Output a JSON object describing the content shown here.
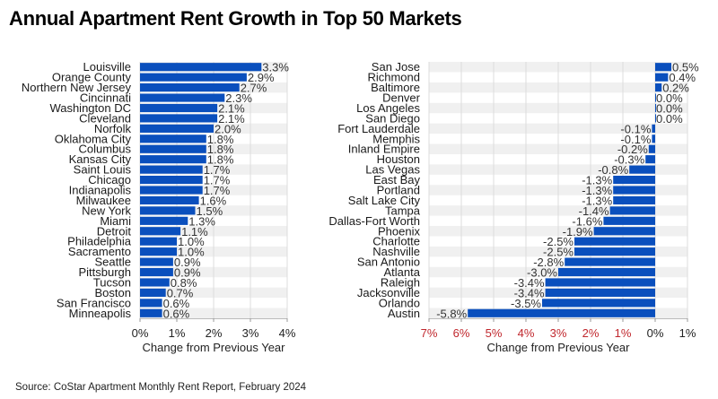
{
  "title": "Annual Apartment Rent Growth in Top 50 Markets",
  "source": "Source: CoStar Apartment Monthly Rent Report, February 2024",
  "colors": {
    "bar": "#0a4fbd",
    "stripe": "#f0f0f0",
    "grid": "#dddddd",
    "negative_tick": "#c0272d"
  },
  "chart_data": [
    {
      "type": "bar",
      "orientation": "horizontal",
      "categories": [
        "Louisville",
        "Orange County",
        "Northern New Jersey",
        "Cincinnati",
        "Washington DC",
        "Cleveland",
        "Norfolk",
        "Oklahoma City",
        "Columbus",
        "Kansas City",
        "Saint Louis",
        "Chicago",
        "Indianapolis",
        "Milwaukee",
        "New York",
        "Miami",
        "Detroit",
        "Philadelphia",
        "Sacramento",
        "Seattle",
        "Pittsburgh",
        "Tucson",
        "Boston",
        "San Francisco",
        "Minneapolis"
      ],
      "values": [
        3.3,
        2.9,
        2.7,
        2.3,
        2.1,
        2.1,
        2.0,
        1.8,
        1.8,
        1.8,
        1.7,
        1.7,
        1.7,
        1.6,
        1.5,
        1.3,
        1.1,
        1.0,
        1.0,
        0.9,
        0.9,
        0.8,
        0.7,
        0.6,
        0.6
      ],
      "value_labels": [
        "3.3%",
        "2.9%",
        "2.7%",
        "2.3%",
        "2.1%",
        "2.1%",
        "2.0%",
        "1.8%",
        "1.8%",
        "1.8%",
        "1.7%",
        "1.7%",
        "1.7%",
        "1.6%",
        "1.5%",
        "1.3%",
        "1.1%",
        "1.0%",
        "1.0%",
        "0.9%",
        "0.9%",
        "0.8%",
        "0.7%",
        "0.6%",
        "0.6%"
      ],
      "xlabel": "Change from Previous Year",
      "xlim": [
        0,
        4
      ],
      "xticks": [
        0,
        1,
        2,
        3,
        4
      ],
      "xtick_labels": [
        "0%",
        "1%",
        "2%",
        "3%",
        "4%"
      ],
      "grid": true
    },
    {
      "type": "bar",
      "orientation": "horizontal",
      "categories": [
        "San Jose",
        "Richmond",
        "Baltimore",
        "Denver",
        "Los Angeles",
        "San Diego",
        "Fort Lauderdale",
        "Memphis",
        "Inland Empire",
        "Houston",
        "Las Vegas",
        "East Bay",
        "Portland",
        "Salt Lake City",
        "Tampa",
        "Dallas-Fort Worth",
        "Phoenix",
        "Charlotte",
        "Nashville",
        "San Antonio",
        "Atlanta",
        "Raleigh",
        "Jacksonville",
        "Orlando",
        "Austin"
      ],
      "values": [
        0.5,
        0.4,
        0.2,
        0.0,
        0.0,
        0.0,
        -0.1,
        -0.1,
        -0.2,
        -0.3,
        -0.8,
        -1.3,
        -1.3,
        -1.3,
        -1.4,
        -1.6,
        -1.9,
        -2.5,
        -2.5,
        -2.8,
        -3.0,
        -3.4,
        -3.4,
        -3.5,
        -5.8
      ],
      "value_labels": [
        "0.5%",
        "0.4%",
        "0.2%",
        "0.0%",
        "0.0%",
        "0.0%",
        "-0.1%",
        "-0.1%",
        "-0.2%",
        "-0.3%",
        "-0.8%",
        "-1.3%",
        "-1.3%",
        "-1.3%",
        "-1.4%",
        "-1.6%",
        "-1.9%",
        "-2.5%",
        "-2.5%",
        "-2.8%",
        "-3.0%",
        "-3.4%",
        "-3.4%",
        "-3.5%",
        "-5.8%"
      ],
      "xlabel": "Change from Previous Year",
      "xlim": [
        -7,
        1
      ],
      "xticks": [
        -7,
        -6,
        -5,
        -4,
        -3,
        -2,
        -1,
        0,
        1
      ],
      "xtick_labels": [
        "7%",
        "6%",
        "5%",
        "4%",
        "3%",
        "2%",
        "1%",
        "0%",
        "1%"
      ],
      "grid": true
    }
  ]
}
